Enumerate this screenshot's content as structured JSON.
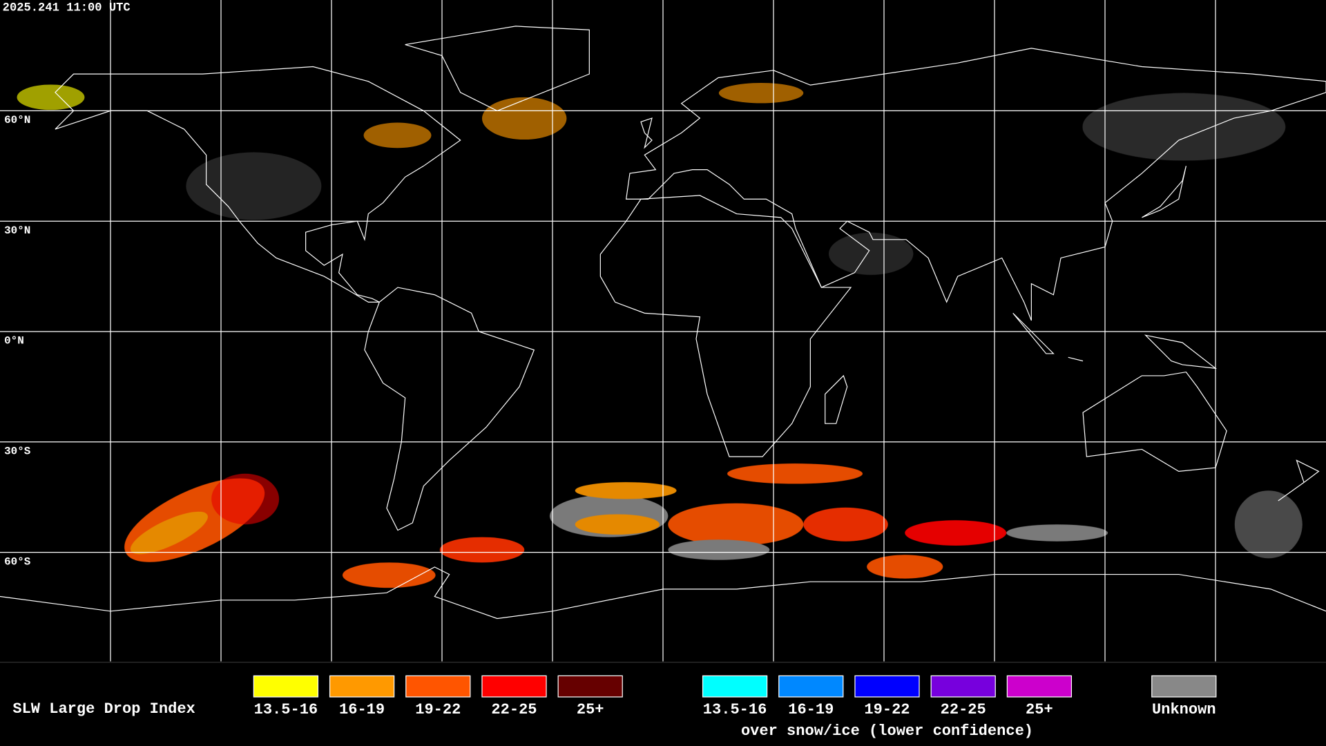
{
  "timestamp": "2025.241 11:00 UTC",
  "latitude_labels": [
    "60°N",
    "30°N",
    "0°N",
    "30°S",
    "60°S"
  ],
  "legend": {
    "title": "SLW Large Drop Index",
    "groups": [
      {
        "items": [
          {
            "label": "13.5-16",
            "color": "#ffff00"
          },
          {
            "label": "16-19",
            "color": "#ff9900"
          },
          {
            "label": "19-22",
            "color": "#ff5500"
          },
          {
            "label": "22-25",
            "color": "#ff0000"
          },
          {
            "label": "25+",
            "color": "#660000"
          }
        ]
      },
      {
        "items": [
          {
            "label": "13.5-16",
            "color": "#00ffff"
          },
          {
            "label": "16-19",
            "color": "#0088ff"
          },
          {
            "label": "19-22",
            "color": "#0000ff"
          },
          {
            "label": "22-25",
            "color": "#7700dd"
          },
          {
            "label": "25+",
            "color": "#cc00cc"
          }
        ],
        "caption": "over snow/ice (lower confidence)"
      },
      {
        "items": [
          {
            "label": "Unknown",
            "color": "#888888"
          }
        ]
      }
    ]
  }
}
